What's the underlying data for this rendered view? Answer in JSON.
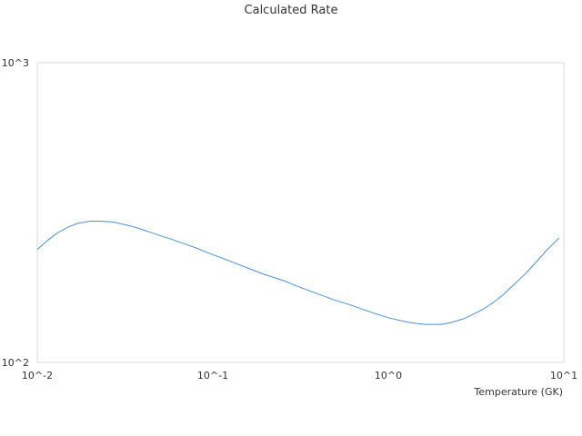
{
  "chart_data": {
    "type": "line",
    "title": "Calculated Rate",
    "xlabel": "Temperature (GK)",
    "ylabel": "",
    "x_scale": "log",
    "y_scale": "log",
    "xlim": [
      0.01,
      10
    ],
    "ylim": [
      100,
      1000
    ],
    "x_ticks": [
      "10^-2",
      "10^-1",
      "10^0",
      "10^1"
    ],
    "y_ticks": [
      "10^2",
      "10^3"
    ],
    "grid": false,
    "legend": "none",
    "series": [
      {
        "color": "#4a90d9",
        "x": [
          0.01,
          0.0115,
          0.013,
          0.015,
          0.017,
          0.02,
          0.023,
          0.027,
          0.03,
          0.035,
          0.04,
          0.05,
          0.06,
          0.07,
          0.08,
          0.1,
          0.12,
          0.15,
          0.2,
          0.25,
          0.3,
          0.4,
          0.5,
          0.6,
          0.8,
          1.0,
          1.3,
          1.6,
          2.0,
          2.3,
          2.7,
          3.0,
          3.5,
          4.0,
          4.5,
          5.0,
          6.0,
          7.0,
          8.0,
          9.4
        ],
        "y": [
          238,
          256,
          270,
          283,
          291,
          296,
          296,
          294,
          290,
          284,
          277,
          265,
          256,
          248,
          241,
          229,
          220,
          209,
          196,
          188,
          180,
          169,
          161,
          156,
          147,
          141,
          136,
          134,
          134,
          136,
          140,
          144,
          151,
          159,
          168,
          178,
          197,
          217,
          237,
          260
        ]
      }
    ]
  }
}
